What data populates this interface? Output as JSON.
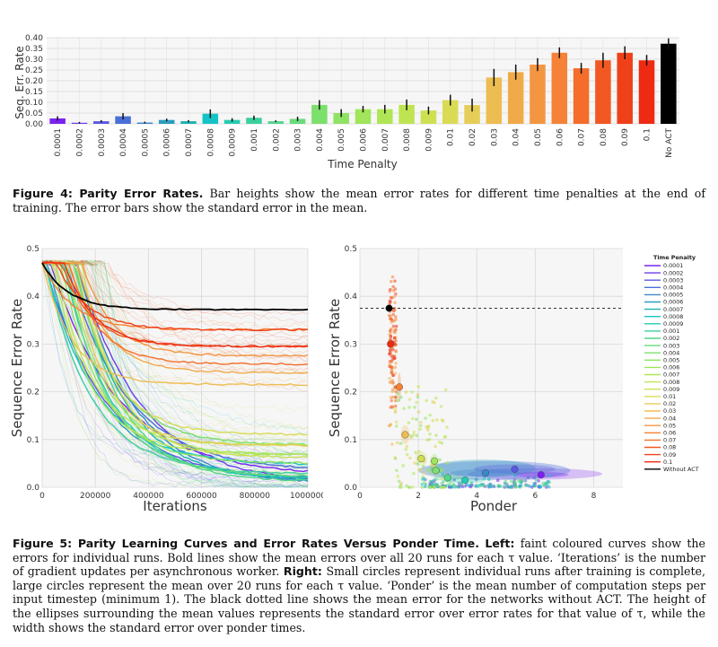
{
  "chart_data": [
    {
      "type": "bar",
      "xlabel": "Time Penalty",
      "ylabel": "Seq. Err. Rate",
      "ylim": [
        0,
        0.4
      ],
      "yticks": [
        "0.00",
        "0.05",
        "0.10",
        "0.15",
        "0.20",
        "0.25",
        "0.30",
        "0.35",
        "0.40"
      ],
      "categories": [
        "0.0001",
        "0.0002",
        "0.0003",
        "0.0004",
        "0.0005",
        "0.0006",
        "0.0007",
        "0.0008",
        "0.0009",
        "0.001",
        "0.002",
        "0.003",
        "0.004",
        "0.005",
        "0.006",
        "0.007",
        "0.008",
        "0.009",
        "0.01",
        "0.02",
        "0.03",
        "0.04",
        "0.05",
        "0.06",
        "0.07",
        "0.08",
        "0.09",
        "0.1",
        "No ACT"
      ],
      "values": [
        0.025,
        0.005,
        0.012,
        0.035,
        0.006,
        0.018,
        0.012,
        0.047,
        0.018,
        0.028,
        0.012,
        0.023,
        0.088,
        0.05,
        0.068,
        0.068,
        0.088,
        0.062,
        0.11,
        0.087,
        0.215,
        0.24,
        0.275,
        0.33,
        0.258,
        0.295,
        0.33,
        0.295,
        0.372
      ],
      "errors": [
        0.01,
        0.004,
        0.005,
        0.015,
        0.004,
        0.006,
        0.005,
        0.02,
        0.008,
        0.01,
        0.004,
        0.01,
        0.022,
        0.018,
        0.015,
        0.02,
        0.025,
        0.018,
        0.025,
        0.03,
        0.04,
        0.035,
        0.03,
        0.025,
        0.025,
        0.035,
        0.03,
        0.025,
        0.025
      ],
      "colors": [
        "#7b22f0",
        "#6b3ee8",
        "#5b57e0",
        "#4a6fd6",
        "#3a87ca",
        "#2a9dc0",
        "#1ab2b2",
        "#14c3c6",
        "#25cbb1",
        "#3bd09e",
        "#52d68b",
        "#68db7a",
        "#7ce06c",
        "#8fe362",
        "#a0e55a",
        "#b0e655",
        "#bfe452",
        "#cde052",
        "#dadb55",
        "#e6cd58",
        "#edbd52",
        "#f1aa4a",
        "#f39641",
        "#f58236",
        "#f46d2b",
        "#f25822",
        "#ef4119",
        "#ee2b12",
        "#000000"
      ]
    },
    {
      "type": "line",
      "xlabel": "Iterations",
      "ylabel": "Sequence Error Rate",
      "xlim": [
        0,
        1000000
      ],
      "ylim": [
        0,
        0.5
      ],
      "xticks": [
        "0",
        "200000",
        "400000",
        "600000",
        "800000",
        "1000000"
      ],
      "yticks": [
        "0.0",
        "0.1",
        "0.2",
        "0.3",
        "0.4",
        "0.5"
      ],
      "mean_final": [
        0.025,
        0.005,
        0.012,
        0.035,
        0.006,
        0.018,
        0.012,
        0.047,
        0.018,
        0.028,
        0.012,
        0.023,
        0.088,
        0.05,
        0.068,
        0.068,
        0.088,
        0.062,
        0.11,
        0.087,
        0.215,
        0.24,
        0.275,
        0.33,
        0.258,
        0.295,
        0.33,
        0.295,
        0.372
      ],
      "no_act_final": 0.372
    },
    {
      "type": "scatter",
      "xlabel": "Ponder",
      "ylabel": "Sequence Error Rate",
      "xlim": [
        0,
        9
      ],
      "ylim": [
        0,
        0.5
      ],
      "xticks": [
        "0",
        "2",
        "4",
        "6",
        "8"
      ],
      "yticks": [
        "0.0",
        "0.1",
        "0.2",
        "0.3",
        "0.4",
        "0.5"
      ],
      "no_act_line": 0.375,
      "means": [
        {
          "ponder": 6.2,
          "error": 0.026,
          "ponder_se": 0.95,
          "error_se": 0.006
        },
        {
          "ponder": 5.3,
          "error": 0.038,
          "ponder_se": 1.4,
          "error_se": 0.01
        },
        {
          "ponder": 4.3,
          "error": 0.03,
          "ponder_se": 1.2,
          "error_se": 0.008
        },
        {
          "ponder": 3.6,
          "error": 0.015,
          "ponder_se": 0.7,
          "error_se": 0.006
        },
        {
          "ponder": 3.0,
          "error": 0.02,
          "ponder_se": 0.5,
          "error_se": 0.006
        },
        {
          "ponder": 2.6,
          "error": 0.035,
          "ponder_se": 0.3,
          "error_se": 0.01
        },
        {
          "ponder": 2.55,
          "error": 0.055,
          "ponder_se": 0.15,
          "error_se": 0.015
        },
        {
          "ponder": 2.1,
          "error": 0.06,
          "ponder_se": 0.2,
          "error_se": 0.015
        },
        {
          "ponder": 1.55,
          "error": 0.11,
          "ponder_se": 0.15,
          "error_se": 0.02
        },
        {
          "ponder": 1.35,
          "error": 0.21,
          "ponder_se": 0.06,
          "error_se": 0.03
        },
        {
          "ponder": 1.05,
          "error": 0.3,
          "ponder_se": 0.03,
          "error_se": 0.03
        },
        {
          "ponder": 1.0,
          "error": 0.375,
          "ponder_se": 0.0,
          "error_se": 0.01
        }
      ],
      "legend": {
        "title": "Time Penalty",
        "entries": [
          "0.0001",
          "0.0002",
          "0.0003",
          "0.0004",
          "0.0005",
          "0.0006",
          "0.0007",
          "0.0008",
          "0.0009",
          "0.001",
          "0.002",
          "0.003",
          "0.004",
          "0.005",
          "0.006",
          "0.007",
          "0.008",
          "0.009",
          "0.01",
          "0.02",
          "0.03",
          "0.04",
          "0.05",
          "0.06",
          "0.07",
          "0.08",
          "0.09",
          "0.1",
          "Without ACT"
        ],
        "position": "right"
      }
    }
  ],
  "captions": {
    "fig4_label": "Figure 4: Parity Error Rates.",
    "fig4_text": "Bar heights show the mean error rates for different time penalties at the end of training. The error bars show the standard error in the mean.",
    "fig5_label": "Figure 5: Parity Learning Curves and Error Rates Versus Ponder Time.",
    "fig5_left_label": "Left:",
    "fig5_left_text": "faint coloured curves show the errors for individual runs. Bold lines show the mean errors over all 20 runs for each τ value. ‘Iterations’ is the number of gradient updates per asynchronous worker.",
    "fig5_right_label": "Right:",
    "fig5_right_text": "Small circles represent individual runs after training is complete, large circles represent the mean over 20 runs for each τ value. ‘Ponder’ is the mean number of computation steps per input timestep (minimum 1). The black dotted line shows the mean error for the networks without ACT. The height of the ellipses surrounding the mean values represents the standard error over error rates for that value of τ, while the width shows the standard error over ponder times."
  }
}
